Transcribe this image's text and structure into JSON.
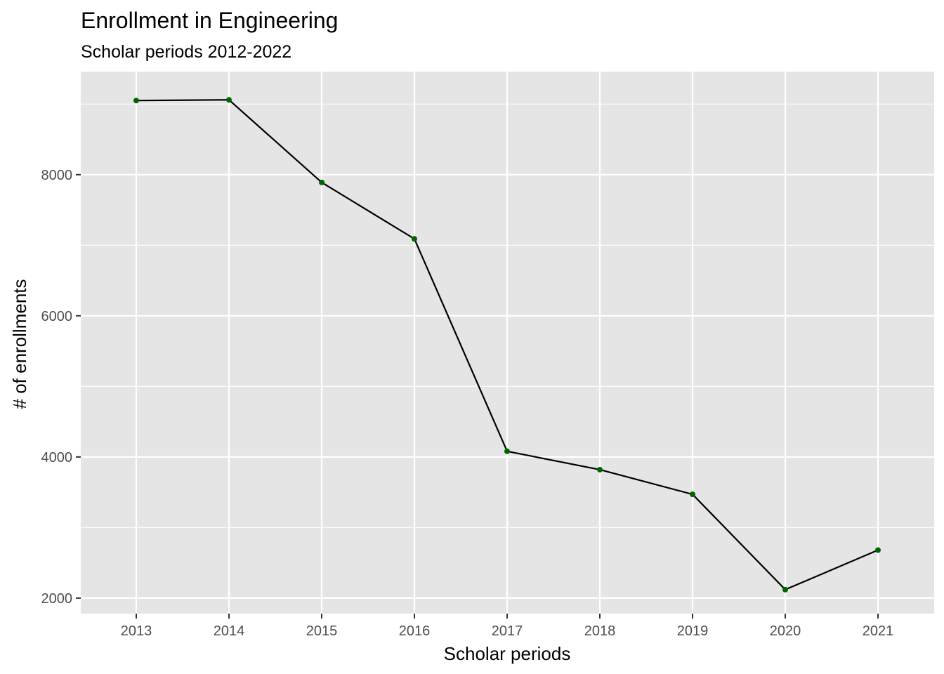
{
  "chart_data": {
    "type": "line",
    "title": "Enrollment in Engineering",
    "subtitle": "Scholar periods 2012-2022",
    "xlabel": "Scholar periods",
    "ylabel": "# of enrollments",
    "x": [
      "2013",
      "2014",
      "2015",
      "2016",
      "2017",
      "2018",
      "2019",
      "2020",
      "2021"
    ],
    "values": [
      9050,
      9060,
      7890,
      7090,
      4080,
      3820,
      3470,
      2120,
      2680
    ],
    "y_ticks": [
      2000,
      4000,
      6000,
      8000
    ],
    "ylim": [
      1780,
      9460
    ],
    "grid": true,
    "colors": {
      "panel_background": "#e5e5e5",
      "grid": "#ffffff",
      "line": "#000000",
      "point": "#006400"
    }
  }
}
